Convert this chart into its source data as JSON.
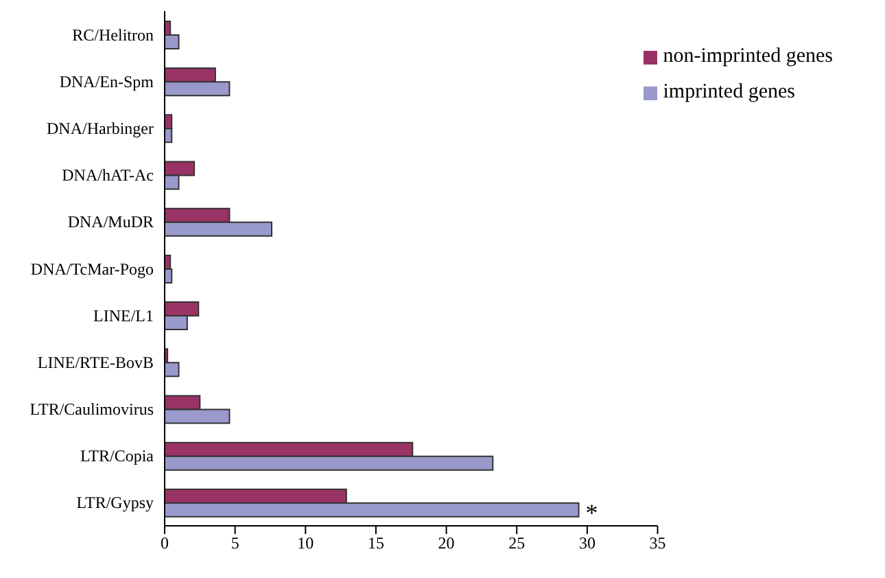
{
  "chart_data": {
    "type": "bar",
    "orientation": "horizontal",
    "categories": [
      "RC/Helitron",
      "DNA/En-Spm",
      "DNA/Harbinger",
      "DNA/hAT-Ac",
      "DNA/MuDR",
      "DNA/TcMar-Pogo",
      "LINE/L1",
      "LINE/RTE-BovB",
      "LTR/Caulimovirus",
      "LTR/Copia",
      "LTR/Gypsy"
    ],
    "series": [
      {
        "name": "non-imprinted genes",
        "color": "#993366",
        "values": [
          0.4,
          3.6,
          0.5,
          2.1,
          4.6,
          0.4,
          2.4,
          0.2,
          2.5,
          17.6,
          12.9
        ]
      },
      {
        "name": "imprinted genes",
        "color": "#9999cc",
        "values": [
          1.0,
          4.6,
          0.5,
          1.0,
          7.6,
          0.5,
          1.6,
          1.0,
          4.6,
          23.3,
          29.4
        ]
      }
    ],
    "xlim": [
      0,
      35
    ],
    "xticks": [
      0,
      5,
      10,
      15,
      20,
      25,
      30,
      35
    ],
    "grid": false,
    "legend": "top right",
    "annotations": [
      {
        "text": "*",
        "x": 29.4,
        "y": "LTR/Gypsy"
      }
    ]
  }
}
